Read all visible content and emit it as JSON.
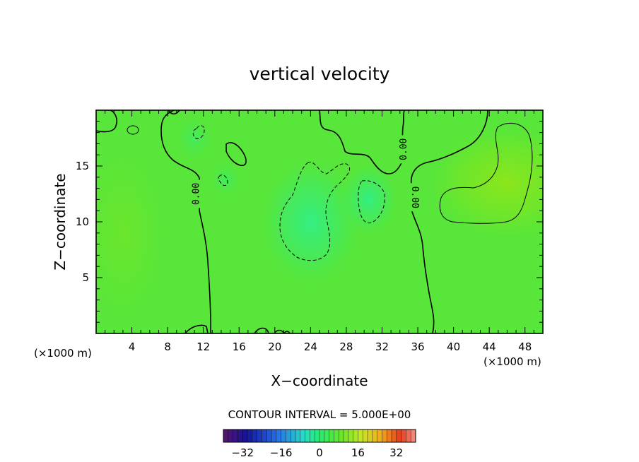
{
  "chart_data": {
    "type": "heatmap",
    "title": "vertical velocity",
    "xlabel": "X−coordinate",
    "ylabel": "Z−coordinate",
    "x_unit_left": "(×1000 m)",
    "x_unit_right": "(×1000 m)",
    "xlim": [
      0,
      50
    ],
    "ylim": [
      0,
      20
    ],
    "x_ticks": [
      4,
      8,
      12,
      16,
      20,
      24,
      28,
      32,
      36,
      40,
      44,
      48
    ],
    "x_tick_labels": [
      "4",
      "8",
      "12",
      "16",
      "20",
      "24",
      "28",
      "32",
      "36",
      "40",
      "44",
      "48"
    ],
    "y_ticks": [
      5,
      10,
      15
    ],
    "y_tick_labels": [
      "5",
      "10",
      "15"
    ],
    "contour_interval_text": "CONTOUR INTERVAL = 5.000E+00",
    "contour_interval": 5.0,
    "contour_labels": [
      {
        "text": "0.00",
        "x": 11.2,
        "y": 12.5
      },
      {
        "text": "0.00",
        "x": 34.4,
        "y": 16.5
      },
      {
        "text": "0.00",
        "x": 35.7,
        "y": 12.2
      }
    ],
    "colorbar": {
      "min": -40,
      "max": 40,
      "ticks": [
        -32,
        -16,
        0,
        16,
        32
      ],
      "tick_labels": [
        "−32",
        "−16",
        "0",
        "16",
        "32"
      ]
    },
    "field_features": [
      {
        "kind": "updraft",
        "x": 46,
        "y": 13.5,
        "value": 8
      },
      {
        "kind": "updraft",
        "x": 3,
        "y": 9,
        "value": 3
      },
      {
        "kind": "downdraft",
        "x": 24,
        "y": 10,
        "value": -6
      },
      {
        "kind": "downdraft",
        "x": 30.5,
        "y": 12,
        "value": -7
      },
      {
        "kind": "downdraft",
        "x": 11,
        "y": 17.5,
        "value": -3
      },
      {
        "kind": "downdraft",
        "x": 14.5,
        "y": 13.8,
        "value": -3
      }
    ]
  }
}
